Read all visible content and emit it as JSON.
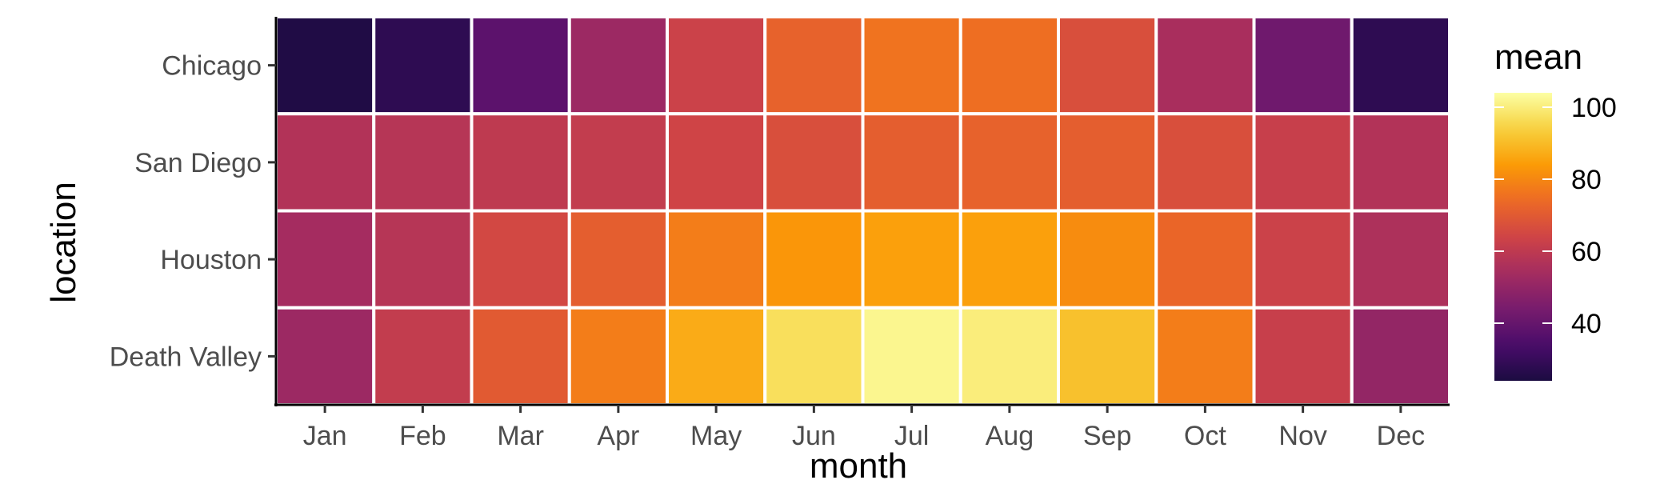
{
  "chart_data": {
    "type": "heatmap",
    "title": "",
    "xlabel": "month",
    "ylabel": "location",
    "x_categories": [
      "Jan",
      "Feb",
      "Mar",
      "Apr",
      "May",
      "Jun",
      "Jul",
      "Aug",
      "Sep",
      "Oct",
      "Nov",
      "Dec"
    ],
    "y_categories": [
      "Chicago",
      "San Diego",
      "Houston",
      "Death Valley"
    ],
    "values": [
      [
        25,
        28,
        38,
        52,
        63,
        72,
        76,
        75,
        67,
        55,
        42,
        28
      ],
      [
        57,
        58,
        60,
        61,
        64,
        67,
        71,
        72,
        71,
        67,
        62,
        57
      ],
      [
        54,
        58,
        65,
        71,
        78,
        83,
        85,
        85,
        81,
        73,
        63,
        56
      ],
      [
        52,
        61,
        70,
        78,
        87,
        97,
        102,
        100,
        91,
        78,
        62,
        50
      ]
    ],
    "legend": {
      "title": "mean",
      "ticks": [
        40,
        60,
        80,
        100
      ],
      "range": [
        24,
        104
      ],
      "position": "right"
    },
    "colorscale": "inferno",
    "grid": false
  }
}
